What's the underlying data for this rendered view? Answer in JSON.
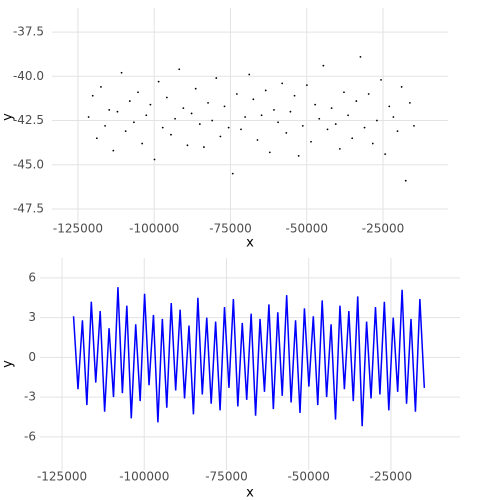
{
  "chart_data": [
    {
      "type": "scatter",
      "xlabel": "x",
      "ylabel": "y",
      "color": "#000000",
      "grid": true,
      "xlim": [
        -133500,
        -3700
      ],
      "ylim": [
        -48.46,
        -36.14
      ],
      "xticks": [
        -125000,
        -100000,
        -75000,
        -50000,
        -25000
      ],
      "yticks": [
        -37.5,
        {
          "value": -40,
          "label": "-40.0"
        },
        -42.5,
        {
          "value": -45,
          "label": "-45.0"
        },
        -47.5
      ],
      "x": [
        -121500,
        -120150,
        -118800,
        -117450,
        -116100,
        -114750,
        -113400,
        -112050,
        -110700,
        -109350,
        -108000,
        -106650,
        -105300,
        -103950,
        -102600,
        -101250,
        -99900,
        -98550,
        -97200,
        -95850,
        -94500,
        -93150,
        -91800,
        -90450,
        -89100,
        -87750,
        -86400,
        -85050,
        -83700,
        -82350,
        -81000,
        -79650,
        -78300,
        -76950,
        -75600,
        -74250,
        -72900,
        -71550,
        -70200,
        -68850,
        -67500,
        -66150,
        -64800,
        -63450,
        -62100,
        -60750,
        -59400,
        -58050,
        -56700,
        -55350,
        -54000,
        -52650,
        -51300,
        -49950,
        -48600,
        -47250,
        -45900,
        -44550,
        -43200,
        -41850,
        -40500,
        -39150,
        -37800,
        -36450,
        -35100,
        -33750,
        -32400,
        -31050,
        -29700,
        -28350,
        -27000,
        -25650,
        -24300,
        -22950,
        -21600,
        -20250,
        -18900,
        -17550,
        -16200,
        -14850
      ],
      "values": [
        -42.3,
        -41.1,
        -43.5,
        -40.6,
        -42.8,
        -41.9,
        -44.2,
        -42.0,
        -39.8,
        -43.1,
        -41.4,
        -42.6,
        -40.9,
        -43.8,
        -42.2,
        -41.6,
        -44.7,
        -40.3,
        -42.9,
        -41.2,
        -43.3,
        -42.4,
        -39.6,
        -41.8,
        -43.9,
        -42.1,
        -40.7,
        -42.7,
        -44.0,
        -41.5,
        -42.5,
        -40.1,
        -43.4,
        -41.7,
        -42.9,
        -45.5,
        -41.0,
        -43.0,
        -42.3,
        -39.9,
        -41.3,
        -43.6,
        -42.2,
        -40.8,
        -44.3,
        -41.9,
        -42.6,
        -40.4,
        -43.2,
        -42.0,
        -41.1,
        -44.5,
        -42.8,
        -40.5,
        -43.7,
        -41.6,
        -42.4,
        -39.4,
        -43.0,
        -41.8,
        -42.7,
        -44.1,
        -40.9,
        -42.2,
        -43.5,
        -41.4,
        -38.9,
        -42.9,
        -41.0,
        -43.8,
        -42.5,
        -40.2,
        -44.4,
        -41.7,
        -42.3,
        -43.1,
        -40.6,
        -45.9,
        -41.5,
        -42.8
      ]
    },
    {
      "type": "line",
      "xlabel": "x",
      "ylabel": "y",
      "color": "#0000ff",
      "grid": true,
      "xlim": [
        -131700,
        -4000
      ],
      "ylim": [
        -8.5,
        7.5
      ],
      "xticks": [
        -125000,
        -100000,
        -75000,
        -50000,
        -25000
      ],
      "yticks": [
        6,
        3,
        0,
        -3,
        -6
      ],
      "x": [
        -121500,
        -120150,
        -118800,
        -117450,
        -116100,
        -114750,
        -113400,
        -112050,
        -110700,
        -109350,
        -108000,
        -106650,
        -105300,
        -103950,
        -102600,
        -101250,
        -99900,
        -98550,
        -97200,
        -95850,
        -94500,
        -93150,
        -91800,
        -90450,
        -89100,
        -87750,
        -86400,
        -85050,
        -83700,
        -82350,
        -81000,
        -79650,
        -78300,
        -76950,
        -75600,
        -74250,
        -72900,
        -71550,
        -70200,
        -68850,
        -67500,
        -66150,
        -64800,
        -63450,
        -62100,
        -60750,
        -59400,
        -58050,
        -56700,
        -55350,
        -54000,
        -52650,
        -51300,
        -49950,
        -48600,
        -47250,
        -45900,
        -44550,
        -43200,
        -41850,
        -40500,
        -39150,
        -37800,
        -36450,
        -35100,
        -33750,
        -32400,
        -31050,
        -29700,
        -28350,
        -27000,
        -25650,
        -24300,
        -22950,
        -21600,
        -20250,
        -18900,
        -17550,
        -16200,
        -14850
      ],
      "values": [
        3.1,
        -2.4,
        2.8,
        -3.6,
        4.2,
        -1.9,
        3.5,
        -4.1,
        2.2,
        -3.0,
        5.3,
        -2.7,
        3.9,
        -4.6,
        2.5,
        -3.3,
        4.8,
        -2.1,
        3.2,
        -4.9,
        2.9,
        -3.8,
        4.1,
        -2.5,
        3.6,
        -3.1,
        2.4,
        -4.3,
        4.5,
        -2.8,
        3.0,
        -3.5,
        2.7,
        -4.0,
        3.8,
        -2.3,
        4.4,
        -3.7,
        2.6,
        -3.2,
        3.3,
        -4.4,
        2.9,
        -2.6,
        4.0,
        -3.9,
        3.4,
        -2.9,
        4.7,
        -3.4,
        2.8,
        -4.2,
        3.7,
        -2.2,
        3.1,
        -3.6,
        4.3,
        -3.0,
        2.5,
        -4.7,
        3.9,
        -2.4,
        3.5,
        -3.3,
        4.6,
        -5.2,
        2.7,
        -3.1,
        3.8,
        -2.8,
        4.2,
        -4.0,
        3.0,
        -2.6,
        5.1,
        -3.5,
        2.9,
        -4.1,
        4.4,
        -2.3
      ]
    }
  ]
}
